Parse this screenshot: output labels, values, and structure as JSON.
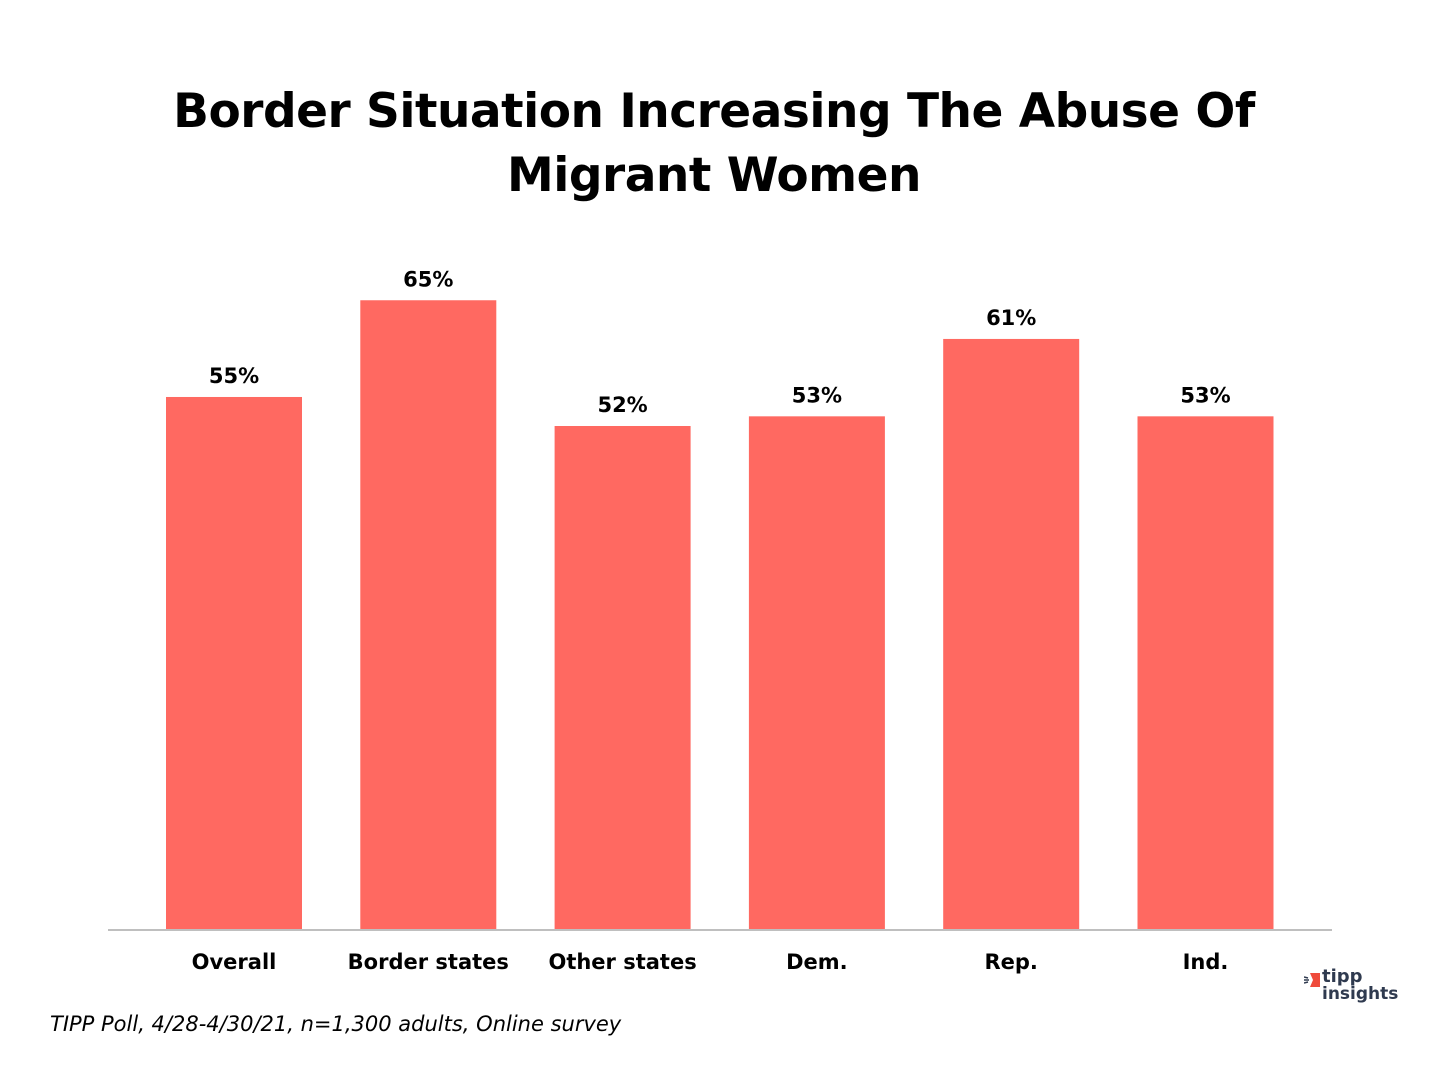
{
  "chart_data": {
    "type": "bar",
    "title": "Border Situation Increasing The Abuse Of Migrant Women",
    "title_lines": [
      "Border Situation Increasing The Abuse Of",
      "Migrant Women"
    ],
    "categories": [
      "Overall",
      "Border states",
      "Other states",
      "Dem.",
      "Rep.",
      "Ind."
    ],
    "values": [
      55,
      65,
      52,
      53,
      61,
      53
    ],
    "value_labels": [
      "55%",
      "65%",
      "52%",
      "53%",
      "61%",
      "53%"
    ],
    "xlabel": "",
    "ylabel": "",
    "ylim": [
      0,
      65
    ],
    "grid": false,
    "legend": "none",
    "bar_color": "#ff6961",
    "axis_color": "#bfbfbf"
  },
  "footnote": "TIPP Poll, 4/28-4/30/21, n=1,300 adults, Online survey",
  "logo": {
    "line1": "tipp",
    "line2": "insights",
    "accent_color": "#ef4a3b",
    "text_color": "#2f3a4f"
  }
}
